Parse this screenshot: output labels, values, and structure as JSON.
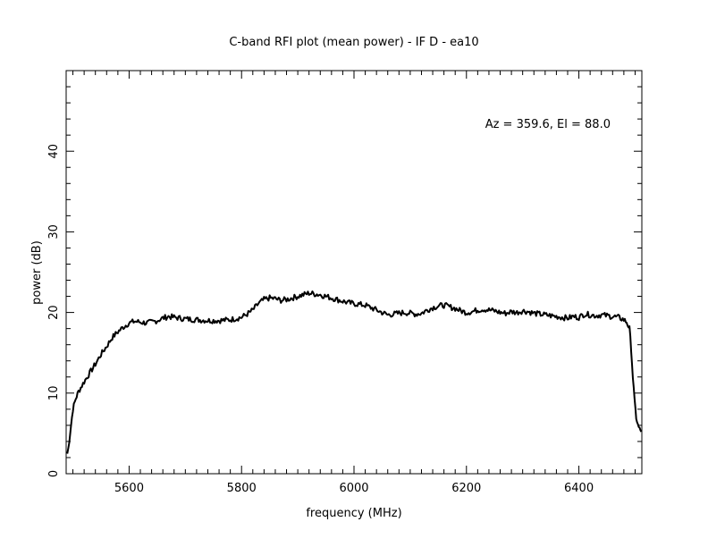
{
  "chart_data": {
    "type": "line",
    "title": "C-band RFI plot (mean power) - IF D - ea10",
    "xlabel": "frequency (MHz)",
    "ylabel": "power (dB)",
    "annotation": "Az = 359.6, El = 88.0",
    "xlim": [
      5488,
      6512
    ],
    "ylim": [
      0,
      50
    ],
    "x_ticks": [
      5600,
      5800,
      6000,
      6200,
      6400
    ],
    "y_ticks": [
      0,
      10,
      20,
      30,
      40
    ],
    "x_tick_labels": [
      "5600",
      "5800",
      "6000",
      "6200",
      "6400"
    ],
    "y_tick_labels": [
      "0",
      "10",
      "20",
      "30",
      "40"
    ],
    "grid": false,
    "line_color": "#000000",
    "series": [
      {
        "x": [
          5490,
          5492,
          5495,
          5500,
          5505,
          5510,
          5520,
          5530,
          5540,
          5550,
          5560,
          5570,
          5580,
          5590,
          5600,
          5610,
          5620,
          5630,
          5640,
          5650,
          5660,
          5670,
          5680,
          5690,
          5700,
          5720,
          5740,
          5760,
          5780,
          5800,
          5810,
          5820,
          5830,
          5840,
          5850,
          5860,
          5870,
          5880,
          5890,
          5900,
          5910,
          5920,
          5930,
          5940,
          5950,
          5960,
          5970,
          5980,
          5990,
          6000,
          6010,
          6020,
          6030,
          6040,
          6050,
          6060,
          6070,
          6080,
          6090,
          6100,
          6110,
          6120,
          6130,
          6140,
          6150,
          6160,
          6170,
          6180,
          6190,
          6200,
          6210,
          6220,
          6230,
          6240,
          6250,
          6260,
          6270,
          6280,
          6290,
          6300,
          6310,
          6320,
          6330,
          6340,
          6350,
          6360,
          6370,
          6380,
          6390,
          6400,
          6410,
          6420,
          6430,
          6440,
          6450,
          6460,
          6470,
          6480,
          6485,
          6490,
          6493,
          6496,
          6499,
          6502,
          6505,
          6508,
          6511
        ],
        "y": [
          2.5,
          3.2,
          5.0,
          8.0,
          9.3,
          10.2,
          11.4,
          12.5,
          13.6,
          14.8,
          15.8,
          16.9,
          17.6,
          18.2,
          18.7,
          18.9,
          18.8,
          18.7,
          18.8,
          19.0,
          19.3,
          19.5,
          19.4,
          19.3,
          19.2,
          19.1,
          19.0,
          19.0,
          19.1,
          19.4,
          19.8,
          20.3,
          21.1,
          21.6,
          21.8,
          21.7,
          21.5,
          21.6,
          21.8,
          22.0,
          22.2,
          22.4,
          22.3,
          22.2,
          22.0,
          21.8,
          21.6,
          21.4,
          21.2,
          21.1,
          21.0,
          20.9,
          20.6,
          20.3,
          20.0,
          19.7,
          19.8,
          19.9,
          20.0,
          19.9,
          19.8,
          19.9,
          20.3,
          20.6,
          20.8,
          20.9,
          20.7,
          20.5,
          20.2,
          20.0,
          20.1,
          20.3,
          20.4,
          20.3,
          20.2,
          20.0,
          19.9,
          20.1,
          20.0,
          20.2,
          20.1,
          19.9,
          19.8,
          19.7,
          19.6,
          19.5,
          19.4,
          19.3,
          19.5,
          19.4,
          19.8,
          19.7,
          19.6,
          19.7,
          19.6,
          19.5,
          19.4,
          19.1,
          18.8,
          18.0,
          15.5,
          12.0,
          9.0,
          7.0,
          6.0,
          5.5,
          5.2
        ]
      }
    ]
  }
}
